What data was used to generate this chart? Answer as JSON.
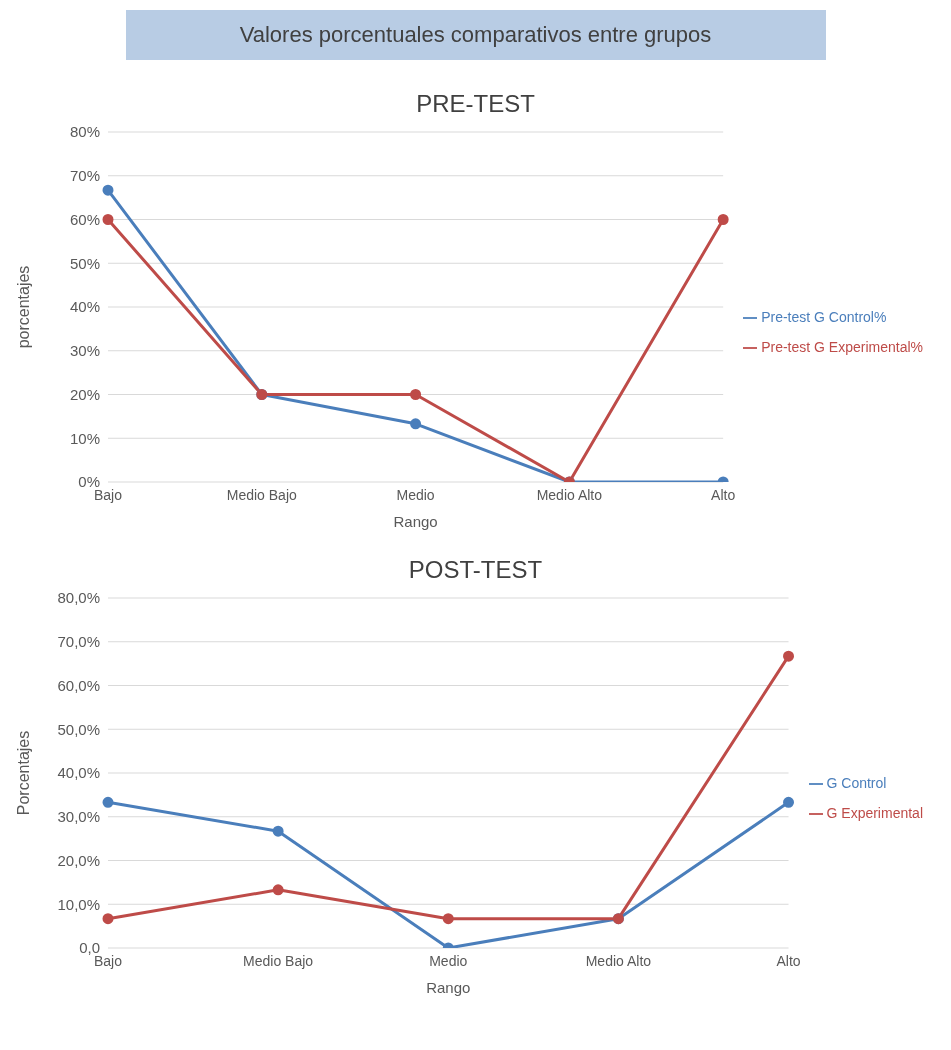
{
  "chart_data": [
    {
      "type": "line",
      "title": "PRE-TEST",
      "subtitle": "Valores porcentuales comparativos entre grupos",
      "xlabel": "Rango",
      "ylabel": "porcentajes",
      "categories": [
        "Bajo",
        "Medio Bajo",
        "Medio",
        "Medio Alto",
        "Alto"
      ],
      "series": [
        {
          "name": "Pre-test G Control%",
          "color": "#4a7ebb",
          "values": [
            66.7,
            20,
            13.3,
            0,
            0
          ]
        },
        {
          "name": "Pre-test G Experimental%",
          "color": "#be4b48",
          "values": [
            60,
            20,
            20,
            0,
            60
          ]
        }
      ],
      "ylim": [
        0,
        80
      ],
      "yticks": [
        {
          "value": 0,
          "label": "0%"
        },
        {
          "value": 10,
          "label": "10%"
        },
        {
          "value": 20,
          "label": "20%"
        },
        {
          "value": 30,
          "label": "30%"
        },
        {
          "value": 40,
          "label": "40%"
        },
        {
          "value": 50,
          "label": "50%"
        },
        {
          "value": 60,
          "label": "60%"
        },
        {
          "value": 70,
          "label": "70%"
        },
        {
          "value": 80,
          "label": "80%"
        }
      ],
      "grid": "y",
      "legend": "right",
      "marker": "circle"
    },
    {
      "type": "line",
      "title": "POST-TEST",
      "xlabel": "Rango",
      "ylabel": "Porcentajes",
      "categories": [
        "Bajo",
        "Medio Bajo",
        "Medio",
        "Medio Alto",
        "Alto"
      ],
      "series": [
        {
          "name": "G Control",
          "color": "#4a7ebb",
          "values": [
            33.3,
            26.7,
            0,
            6.7,
            33.3
          ]
        },
        {
          "name": "G Experimental",
          "color": "#be4b48",
          "values": [
            6.7,
            13.3,
            6.7,
            6.7,
            66.7
          ]
        }
      ],
      "ylim": [
        0,
        80
      ],
      "yticks": [
        {
          "value": 0,
          "label": "0,0"
        },
        {
          "value": 10,
          "label": "10,0%"
        },
        {
          "value": 20,
          "label": "20,0%"
        },
        {
          "value": 30,
          "label": "30,0%"
        },
        {
          "value": 40,
          "label": "40,0%"
        },
        {
          "value": 50,
          "label": "50,0%"
        },
        {
          "value": 60,
          "label": "60,0%"
        },
        {
          "value": 70,
          "label": "70,0%"
        },
        {
          "value": 80,
          "label": "80,0%"
        }
      ],
      "grid": "y",
      "legend": "right",
      "marker": "circle"
    }
  ]
}
